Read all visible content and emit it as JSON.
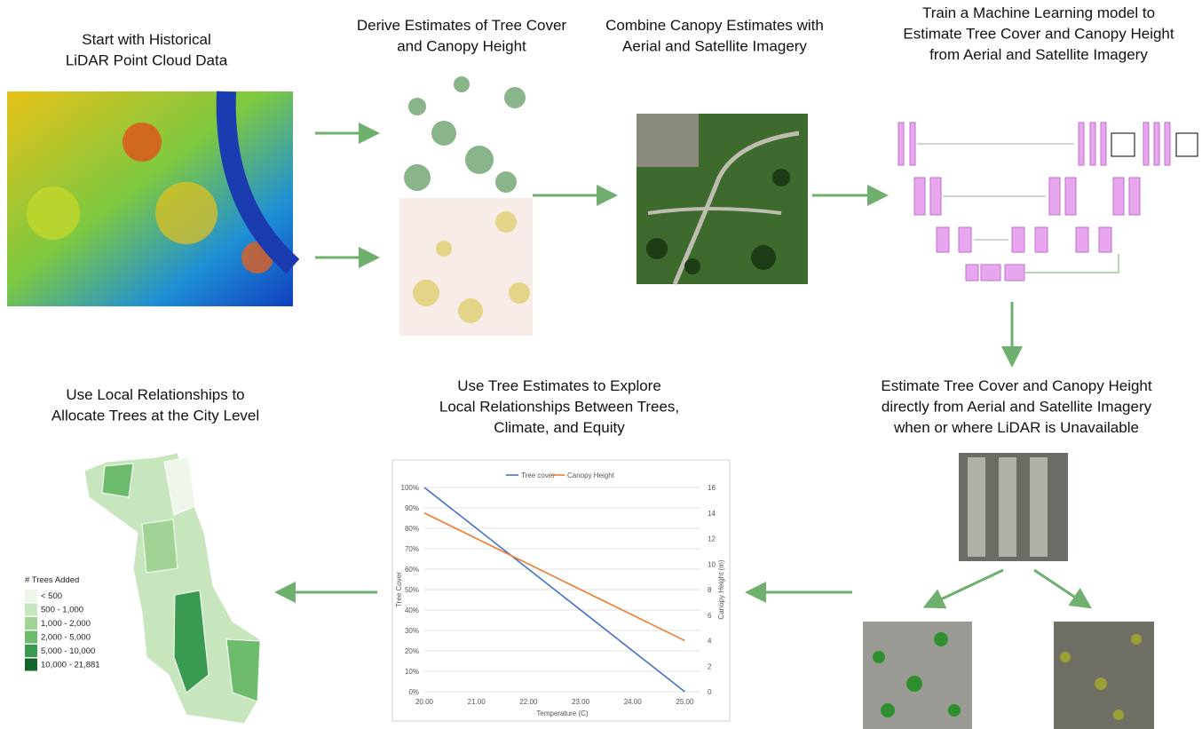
{
  "steps": [
    {
      "title_lines": [
        "Start with Historical",
        "LiDAR Point Cloud Data"
      ]
    },
    {
      "title_lines": [
        "Derive Estimates of Tree Cover",
        "and Canopy Height"
      ]
    },
    {
      "title_lines": [
        "Combine Canopy Estimates with",
        "Aerial and Satellite Imagery"
      ]
    },
    {
      "title_lines": [
        "Train a Machine Learning model to",
        "Estimate Tree Cover and Canopy Height",
        "from Aerial and Satellite Imagery"
      ]
    },
    {
      "title_lines": [
        "Estimate Tree Cover and Canopy Height",
        "directly from Aerial and Satellite Imagery",
        "when or where LiDAR is Unavailable"
      ]
    },
    {
      "title_lines": [
        "Use Tree Estimates to Explore",
        "Local Relationships Between Trees,",
        "Climate, and Equity"
      ]
    },
    {
      "title_lines": [
        "Use Local Relationships to",
        "Allocate Trees at the City Level"
      ]
    }
  ],
  "map_legend": {
    "title": "# Trees Added",
    "classes": [
      "< 500",
      "500 - 1,000",
      "1,000 - 2,000",
      "2,000 - 5,000",
      "5,000 - 10,000",
      "10,000 - 21,881"
    ],
    "colors": [
      "#edf6e9",
      "#c7e6bd",
      "#a1d494",
      "#6dbb6d",
      "#3a9a4f",
      "#11652a"
    ]
  },
  "chart_data": {
    "type": "line",
    "x": [
      20,
      25
    ],
    "xlabel": "Temperature (C)",
    "ylabel": "Tree Cover",
    "y2label": "Canopy Height (m)",
    "xlim": [
      20,
      25.3
    ],
    "xticks": [
      {
        "value": 20,
        "label": "20.00"
      },
      {
        "value": 21,
        "label": "21.00"
      },
      {
        "value": 22,
        "label": "22.00"
      },
      {
        "value": 23,
        "label": "23.00"
      },
      {
        "value": 24,
        "label": "24.00"
      },
      {
        "value": 25,
        "label": "25.00"
      }
    ],
    "ylim": [
      0,
      100
    ],
    "yticks": [
      {
        "value": 0,
        "label": "0%"
      },
      {
        "value": 10,
        "label": "10%"
      },
      {
        "value": 20,
        "label": "20%"
      },
      {
        "value": 30,
        "label": "30%"
      },
      {
        "value": 40,
        "label": "40%"
      },
      {
        "value": 50,
        "label": "50%"
      },
      {
        "value": 60,
        "label": "60%"
      },
      {
        "value": 70,
        "label": "70%"
      },
      {
        "value": 80,
        "label": "80%"
      },
      {
        "value": 90,
        "label": "90%"
      },
      {
        "value": 100,
        "label": "100%"
      }
    ],
    "y2lim": [
      0,
      16
    ],
    "y2ticks": [
      0,
      2,
      4,
      6,
      8,
      10,
      12,
      14,
      16
    ],
    "grid": true,
    "legend": "top",
    "series": [
      {
        "name": "Tree cover",
        "color": "#4472c4",
        "values": [
          100,
          0
        ]
      },
      {
        "name": "Canopy Height",
        "color": "#ed7d31",
        "values": [
          14,
          4
        ],
        "axis": "y2"
      }
    ]
  }
}
